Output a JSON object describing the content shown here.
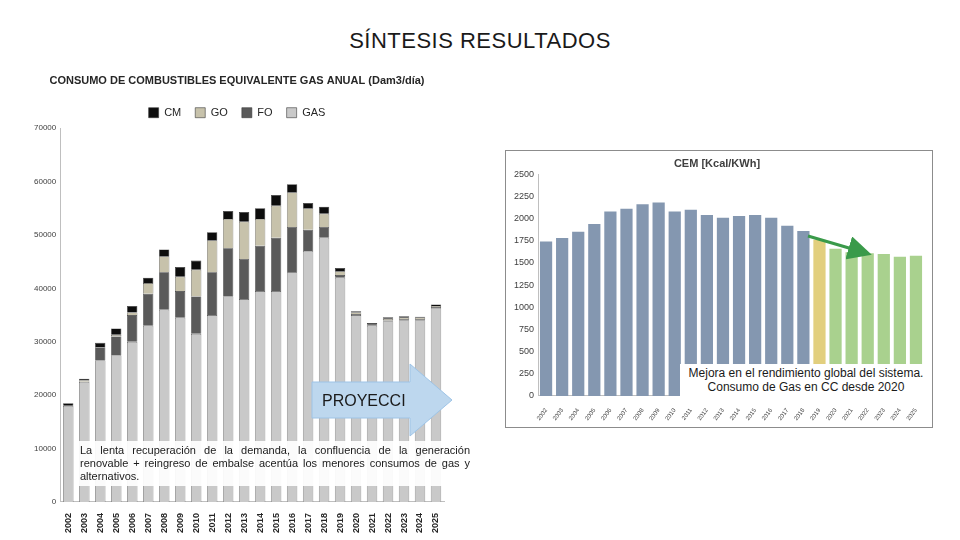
{
  "header": {
    "title": "SÍNTESIS RESULTADOS"
  },
  "chart_data": [
    {
      "type": "bar",
      "title": "CONSUMO DE COMBUSTIBLES EQUIVALENTE GAS ANUAL (Dam3/día)",
      "categories": [
        "2002",
        "2003",
        "2004",
        "2005",
        "2006",
        "2007",
        "2008",
        "2009",
        "2010",
        "2011",
        "2012",
        "2013",
        "2014",
        "2015",
        "2016",
        "2017",
        "2018",
        "2019",
        "2020",
        "2021",
        "2022",
        "2023",
        "2024",
        "2025"
      ],
      "series": [
        {
          "name": "GAS",
          "color": "#c9c9c9",
          "values": [
            18000,
            22500,
            26500,
            27500,
            30000,
            33000,
            36000,
            34500,
            31500,
            35000,
            38500,
            38000,
            39500,
            39500,
            43000,
            47000,
            49500,
            42000,
            35000,
            33000,
            33800,
            34000,
            34000,
            36300
          ]
        },
        {
          "name": "FO",
          "color": "#5a5a5a",
          "values": [
            0,
            0,
            2500,
            3500,
            5000,
            6000,
            7000,
            5000,
            7000,
            8000,
            9000,
            7500,
            8500,
            10000,
            8500,
            4000,
            2000,
            500,
            200,
            200,
            200,
            200,
            200,
            200
          ]
        },
        {
          "name": "GO",
          "color": "#c7c2ab",
          "values": [
            0,
            300,
            0,
            300,
            500,
            2000,
            3000,
            2700,
            5000,
            6000,
            5500,
            7000,
            5000,
            6000,
            6500,
            4000,
            2500,
            700,
            300,
            0,
            300,
            300,
            300,
            200
          ]
        },
        {
          "name": "CM",
          "color": "#0d0d0d",
          "values": [
            500,
            300,
            800,
            1200,
            1200,
            1000,
            1300,
            1800,
            1700,
            1500,
            1500,
            1800,
            2000,
            2000,
            1500,
            1000,
            1300,
            600,
            200,
            300,
            300,
            300,
            200,
            300
          ]
        }
      ],
      "stacked": true,
      "legend": "top",
      "grid": false,
      "ylim": [
        0,
        70000
      ],
      "yticks": [
        0,
        10000,
        20000,
        30000,
        40000,
        50000,
        60000,
        70000
      ],
      "annotations": [
        "PROYECCI",
        "La lenta recuperación de la demanda, la confluencia de la generación renovable + reingreso de embalse acentúa los menores consumos de gas y alternativos."
      ]
    },
    {
      "type": "bar",
      "title": "CEM [Kcal/KWh]",
      "categories": [
        "2002",
        "2003",
        "2004",
        "2005",
        "2006",
        "2007",
        "2008",
        "2009",
        "2010",
        "2011",
        "2012",
        "2013",
        "2014",
        "2015",
        "2016",
        "2017",
        "2018",
        "2019",
        "2020",
        "2021",
        "2022",
        "2023",
        "2024",
        "2025"
      ],
      "values": [
        1740,
        1780,
        1850,
        1940,
        2080,
        2110,
        2160,
        2180,
        2080,
        2100,
        2040,
        2010,
        2030,
        2040,
        2010,
        1920,
        1860,
        1760,
        1660,
        1620,
        1610,
        1600,
        1570,
        1580
      ],
      "colors": [
        "#8497b0",
        "#8497b0",
        "#8497b0",
        "#8497b0",
        "#8497b0",
        "#8497b0",
        "#8497b0",
        "#8497b0",
        "#8497b0",
        "#8497b0",
        "#8497b0",
        "#8497b0",
        "#8497b0",
        "#8497b0",
        "#8497b0",
        "#8497b0",
        "#8497b0",
        "#e2cf7e",
        "#a9d18e",
        "#a9d18e",
        "#a9d18e",
        "#a9d18e",
        "#a9d18e",
        "#a9d18e"
      ],
      "grid": false,
      "ylim": [
        0,
        2500
      ],
      "yticks": [
        0,
        250,
        500,
        750,
        1000,
        1250,
        1500,
        1750,
        2000,
        2250,
        2500
      ],
      "annotations": [
        "Mejora en el rendimiento global del sistema. Consumo de Gas en CC desde 2020"
      ]
    }
  ]
}
